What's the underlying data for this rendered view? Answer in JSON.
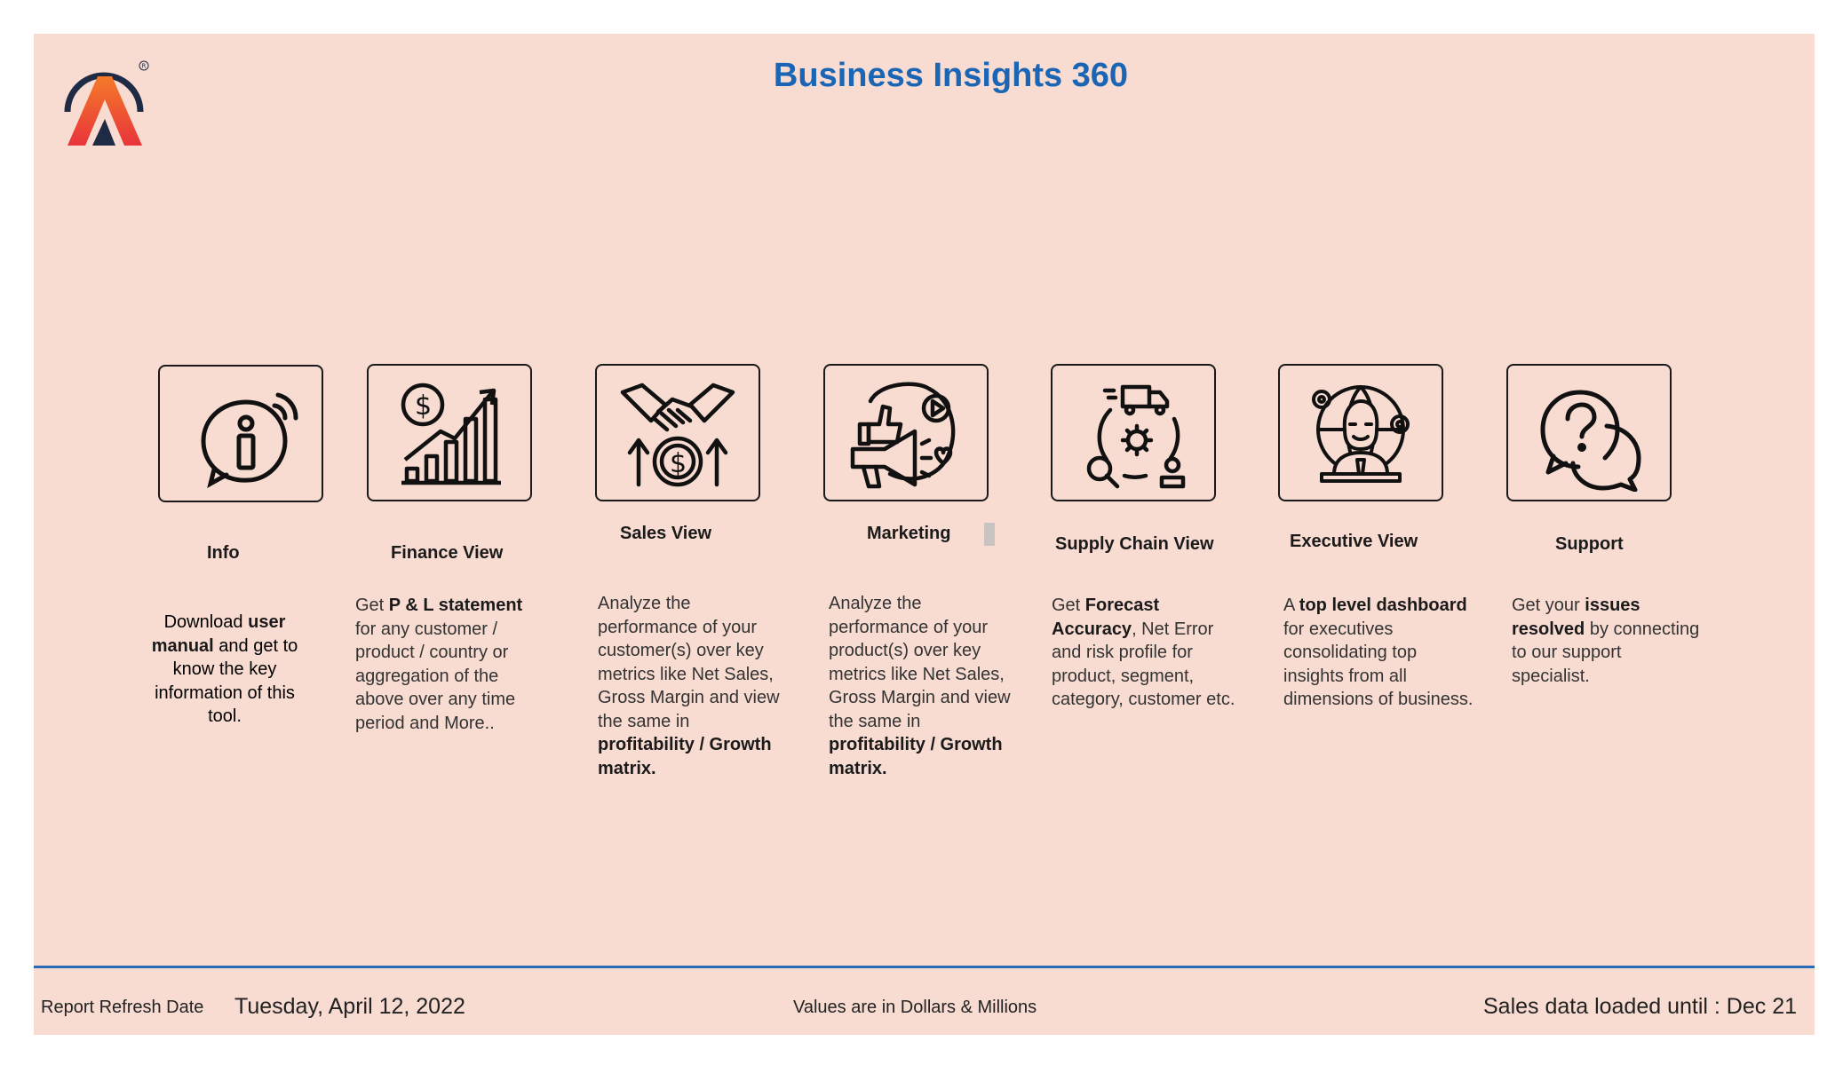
{
  "header": {
    "title": "Business Insights 360"
  },
  "tiles": [
    {
      "id": "info",
      "label": "Info",
      "icon": "info-icon",
      "desc": [
        {
          "t": "Download "
        },
        {
          "t": "user manual",
          "b": true
        },
        {
          "t": " and get to know the key information of this tool."
        }
      ]
    },
    {
      "id": "finance",
      "label": "Finance View",
      "icon": "finance-chart-icon",
      "desc": [
        {
          "t": "Get  "
        },
        {
          "t": "P & L statement",
          "b": true
        },
        {
          "t": " for any customer / product / country or aggregation of the above over any time period and More.."
        }
      ]
    },
    {
      "id": "sales",
      "label": "Sales View",
      "icon": "handshake-icon",
      "desc": [
        {
          "t": "Analyze the performance of your customer(s) over key metrics like Net Sales, Gross Margin and view the same in "
        },
        {
          "t": "profitability / Growth matrix.",
          "b": true
        }
      ]
    },
    {
      "id": "marketing",
      "label": "Marketing",
      "icon": "megaphone-icon",
      "desc": [
        {
          "t": "Analyze the performance of your product(s) over key metrics like Net Sales, Gross Margin and view the same in "
        },
        {
          "t": "profitability / Growth matrix.",
          "b": true
        }
      ]
    },
    {
      "id": "supply-chain",
      "label": "Supply Chain View",
      "icon": "supply-chain-icon",
      "desc": [
        {
          "t": "Get "
        },
        {
          "t": "Forecast Accuracy",
          "b": true
        },
        {
          "t": ", Net Error and risk profile for product, segment, category, customer etc."
        }
      ]
    },
    {
      "id": "executive",
      "label": "Executive View",
      "icon": "executive-icon",
      "desc": [
        {
          "t": "A "
        },
        {
          "t": "top level dashboard",
          "b": true
        },
        {
          "t": " for executives consolidating top insights from all dimensions of business."
        }
      ]
    },
    {
      "id": "support",
      "label": "Support",
      "icon": "support-chat-icon",
      "desc": [
        {
          "t": "Get your "
        },
        {
          "t": "issues resolved",
          "b": true
        },
        {
          "t": " by connecting to our support specialist."
        }
      ]
    }
  ],
  "footer": {
    "refresh_label": "Report Refresh Date",
    "refresh_date": "Tuesday, April 12, 2022",
    "units_note": "Values are in Dollars & Millions",
    "sales_loaded": "Sales data loaded until : Dec 21"
  },
  "colors": {
    "title": "#1b65b5",
    "background": "#f8dbd1",
    "divider": "#2a6bb8",
    "logo_orange": "#f05a28",
    "logo_red": "#e8343a",
    "logo_navy": "#1f2a44"
  }
}
